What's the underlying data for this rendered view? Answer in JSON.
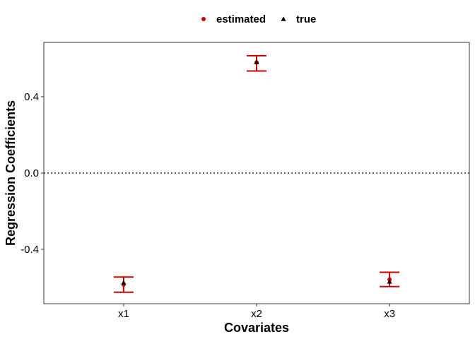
{
  "chart_data": {
    "type": "scatter",
    "title": "",
    "xlabel": "Covariates",
    "ylabel": "Regression Coefficients",
    "categories": [
      "x1",
      "x2",
      "x3"
    ],
    "ylim": [
      -0.685,
      0.685
    ],
    "yticks": [
      {
        "value": 0.4,
        "label": "0.4"
      },
      {
        "value": 0.0,
        "label": "0.0"
      },
      {
        "value": -0.4,
        "label": "-0.4"
      }
    ],
    "reference_line": {
      "value": 0.0,
      "style": "dotted"
    },
    "grid": false,
    "legend": {
      "position": "top"
    },
    "series": [
      {
        "name": "estimated",
        "marker": "circle",
        "color": "#cc0000",
        "values": [
          -0.585,
          0.58,
          -0.558
        ],
        "error_lower": [
          -0.625,
          0.535,
          -0.595
        ],
        "error_upper": [
          -0.545,
          0.615,
          -0.52
        ]
      },
      {
        "name": "true",
        "marker": "triangle",
        "color": "#000000",
        "values": [
          -0.575,
          0.58,
          -0.57
        ]
      }
    ]
  }
}
